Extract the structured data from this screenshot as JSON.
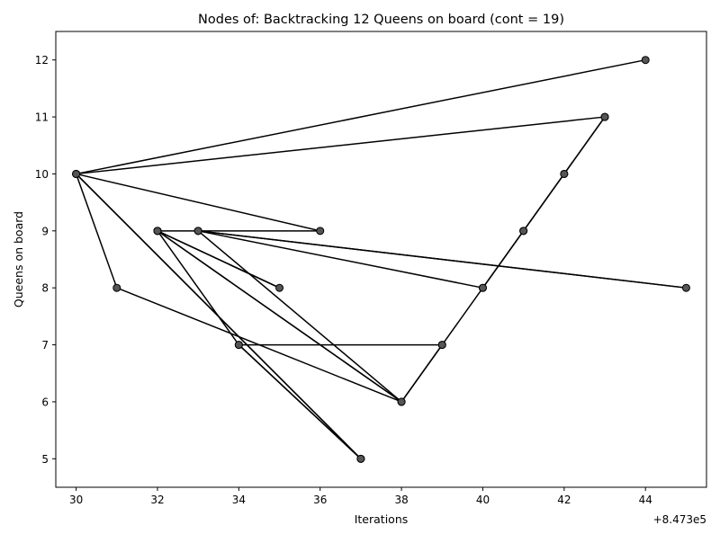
{
  "chart_data": {
    "type": "line",
    "title": "Nodes of: Backtracking 12 Queens on board (cont = 19)",
    "xlabel": "Iterations",
    "ylabel": "Queens on board",
    "x_offset_label": "+8.473e5",
    "x_ticks": [
      30,
      32,
      34,
      36,
      38,
      40,
      42,
      44
    ],
    "y_ticks": [
      5,
      6,
      7,
      8,
      9,
      10,
      11,
      12
    ],
    "xlim": [
      29.5,
      45.5
    ],
    "ylim": [
      4.5,
      12.5
    ],
    "grid": false,
    "legend": "none",
    "line_color": "#000000",
    "marker_color": "#555555",
    "points": [
      {
        "x": 44,
        "y": 12
      },
      {
        "x": 30,
        "y": 10
      },
      {
        "x": 43,
        "y": 11
      },
      {
        "x": 42,
        "y": 10
      },
      {
        "x": 41,
        "y": 9
      },
      {
        "x": 40,
        "y": 8
      },
      {
        "x": 33,
        "y": 9
      },
      {
        "x": 45,
        "y": 8
      },
      {
        "x": 33,
        "y": 9
      },
      {
        "x": 38,
        "y": 6
      },
      {
        "x": 32,
        "y": 9
      },
      {
        "x": 35,
        "y": 8
      },
      {
        "x": 32,
        "y": 9
      },
      {
        "x": 38,
        "y": 6
      },
      {
        "x": 39,
        "y": 7
      },
      {
        "x": 34,
        "y": 7
      },
      {
        "x": 37,
        "y": 5
      },
      {
        "x": 30,
        "y": 10
      },
      {
        "x": 36,
        "y": 9
      },
      {
        "x": 32,
        "y": 9
      },
      {
        "x": 34,
        "y": 7
      },
      {
        "x": 37,
        "y": 5
      },
      {
        "x": 30,
        "y": 10
      },
      {
        "x": 31,
        "y": 8
      },
      {
        "x": 38,
        "y": 6
      },
      {
        "x": 39,
        "y": 7
      },
      {
        "x": 40,
        "y": 8
      },
      {
        "x": 41,
        "y": 9
      },
      {
        "x": 42,
        "y": 10
      },
      {
        "x": 43,
        "y": 11
      }
    ]
  }
}
